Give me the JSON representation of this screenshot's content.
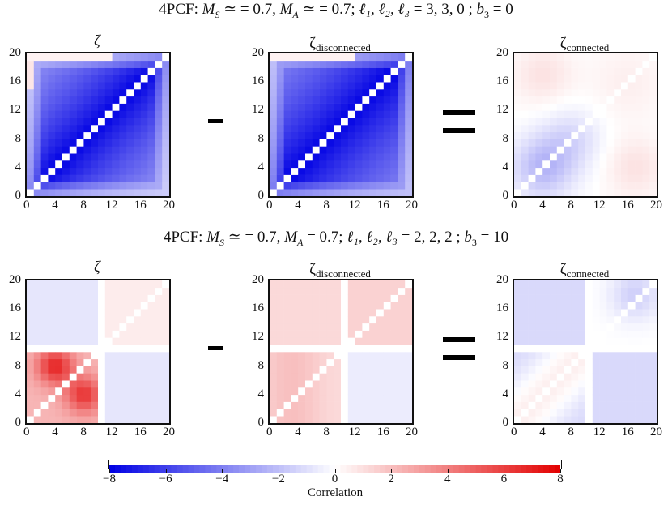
{
  "figure": {
    "row1_title": {
      "prefix": "4PCF: ",
      "ms_sym": "M",
      "ms_sub": "S",
      "mid1": " ≃ = 0.7, ",
      "ma_sym": "M",
      "ma_sub": "A",
      "mid2": " ≃ = 0.7; ",
      "ells": "ℓ₁, ℓ₂, ℓ₃",
      "ell_vals": " = 3, 3, 0 ; ",
      "b3": "b",
      "b3_sub": "3",
      "b3_val": " = 0"
    },
    "row2_title": {
      "prefix": "4PCF: ",
      "ms_sym": "M",
      "ms_sub": "S",
      "mid1": " ≃ = 0.7, ",
      "ma_sym": "M",
      "ma_sub": "A",
      "mid2": " = 0.7; ",
      "ells": "ℓ₁, ℓ₂, ℓ₃",
      "ell_vals": " = 2, 2, 2 ; ",
      "b3": "b",
      "b3_sub": "3",
      "b3_val": " = 10"
    },
    "panel_titles": {
      "total": "ζ",
      "disc_base": "ζ",
      "disc_sub": "disconnected",
      "conn_base": "ζ",
      "conn_sub": "connected"
    },
    "operators": {
      "minus": "-",
      "equals": "="
    }
  },
  "chart_data": [
    {
      "type": "heatmap",
      "row": 1,
      "panel": "total",
      "title": "ζ",
      "grid_n": 20,
      "xlim": [
        0,
        20
      ],
      "ylim": [
        0,
        20
      ],
      "xticks": [
        "0",
        "4",
        "8",
        "12",
        "16",
        "20"
      ],
      "yticks": [
        "0",
        "4",
        "8",
        "12",
        "16",
        "20"
      ],
      "model": "row1_total",
      "diagonal": "white"
    },
    {
      "type": "heatmap",
      "row": 1,
      "panel": "disconnected",
      "title": "ζdisconnected",
      "grid_n": 20,
      "xlim": [
        0,
        20
      ],
      "ylim": [
        0,
        20
      ],
      "xticks": [
        "0",
        "4",
        "8",
        "12",
        "16",
        "20"
      ],
      "yticks": [
        "0",
        "4",
        "8",
        "12",
        "16",
        "20"
      ],
      "model": "row1_disc",
      "diagonal": "white"
    },
    {
      "type": "heatmap",
      "row": 1,
      "panel": "connected",
      "title": "ζconnected",
      "grid_n": 20,
      "xlim": [
        0,
        20
      ],
      "ylim": [
        0,
        20
      ],
      "xticks": [
        "0",
        "4",
        "8",
        "12",
        "16",
        "20"
      ],
      "yticks": [
        "0",
        "4",
        "8",
        "12",
        "16",
        "20"
      ],
      "model": "row1_conn",
      "diagonal": "white"
    },
    {
      "type": "heatmap",
      "row": 2,
      "panel": "total",
      "title": "ζ",
      "grid_n": 20,
      "xlim": [
        0,
        20
      ],
      "ylim": [
        0,
        20
      ],
      "xticks": [
        "0",
        "4",
        "8",
        "12",
        "16",
        "20"
      ],
      "yticks": [
        "0",
        "4",
        "8",
        "12",
        "16",
        "20"
      ],
      "model": "row2_total",
      "diagonal": "white",
      "white_band": 10
    },
    {
      "type": "heatmap",
      "row": 2,
      "panel": "disconnected",
      "title": "ζdisconnected",
      "grid_n": 20,
      "xlim": [
        0,
        20
      ],
      "ylim": [
        0,
        20
      ],
      "xticks": [
        "0",
        "4",
        "8",
        "12",
        "16",
        "20"
      ],
      "yticks": [
        "0",
        "4",
        "8",
        "12",
        "16",
        "20"
      ],
      "model": "row2_disc",
      "diagonal": "white",
      "white_band": 10
    },
    {
      "type": "heatmap",
      "row": 2,
      "panel": "connected",
      "title": "ζconnected",
      "grid_n": 20,
      "xlim": [
        0,
        20
      ],
      "ylim": [
        0,
        20
      ],
      "xticks": [
        "0",
        "4",
        "8",
        "12",
        "16",
        "20"
      ],
      "yticks": [
        "0",
        "4",
        "8",
        "12",
        "16",
        "20"
      ],
      "model": "row2_conn",
      "diagonal": "white",
      "white_band": 10
    }
  ],
  "colorbar": {
    "label": "Correlation",
    "range": [
      -8,
      8
    ],
    "ticks": [
      "−8",
      "−6",
      "−4",
      "−2",
      "0",
      "2",
      "4",
      "6",
      "8"
    ],
    "cmap": {
      "negative": "#0000ff",
      "zero": "#ffffff",
      "positive": "#ff0000"
    }
  }
}
